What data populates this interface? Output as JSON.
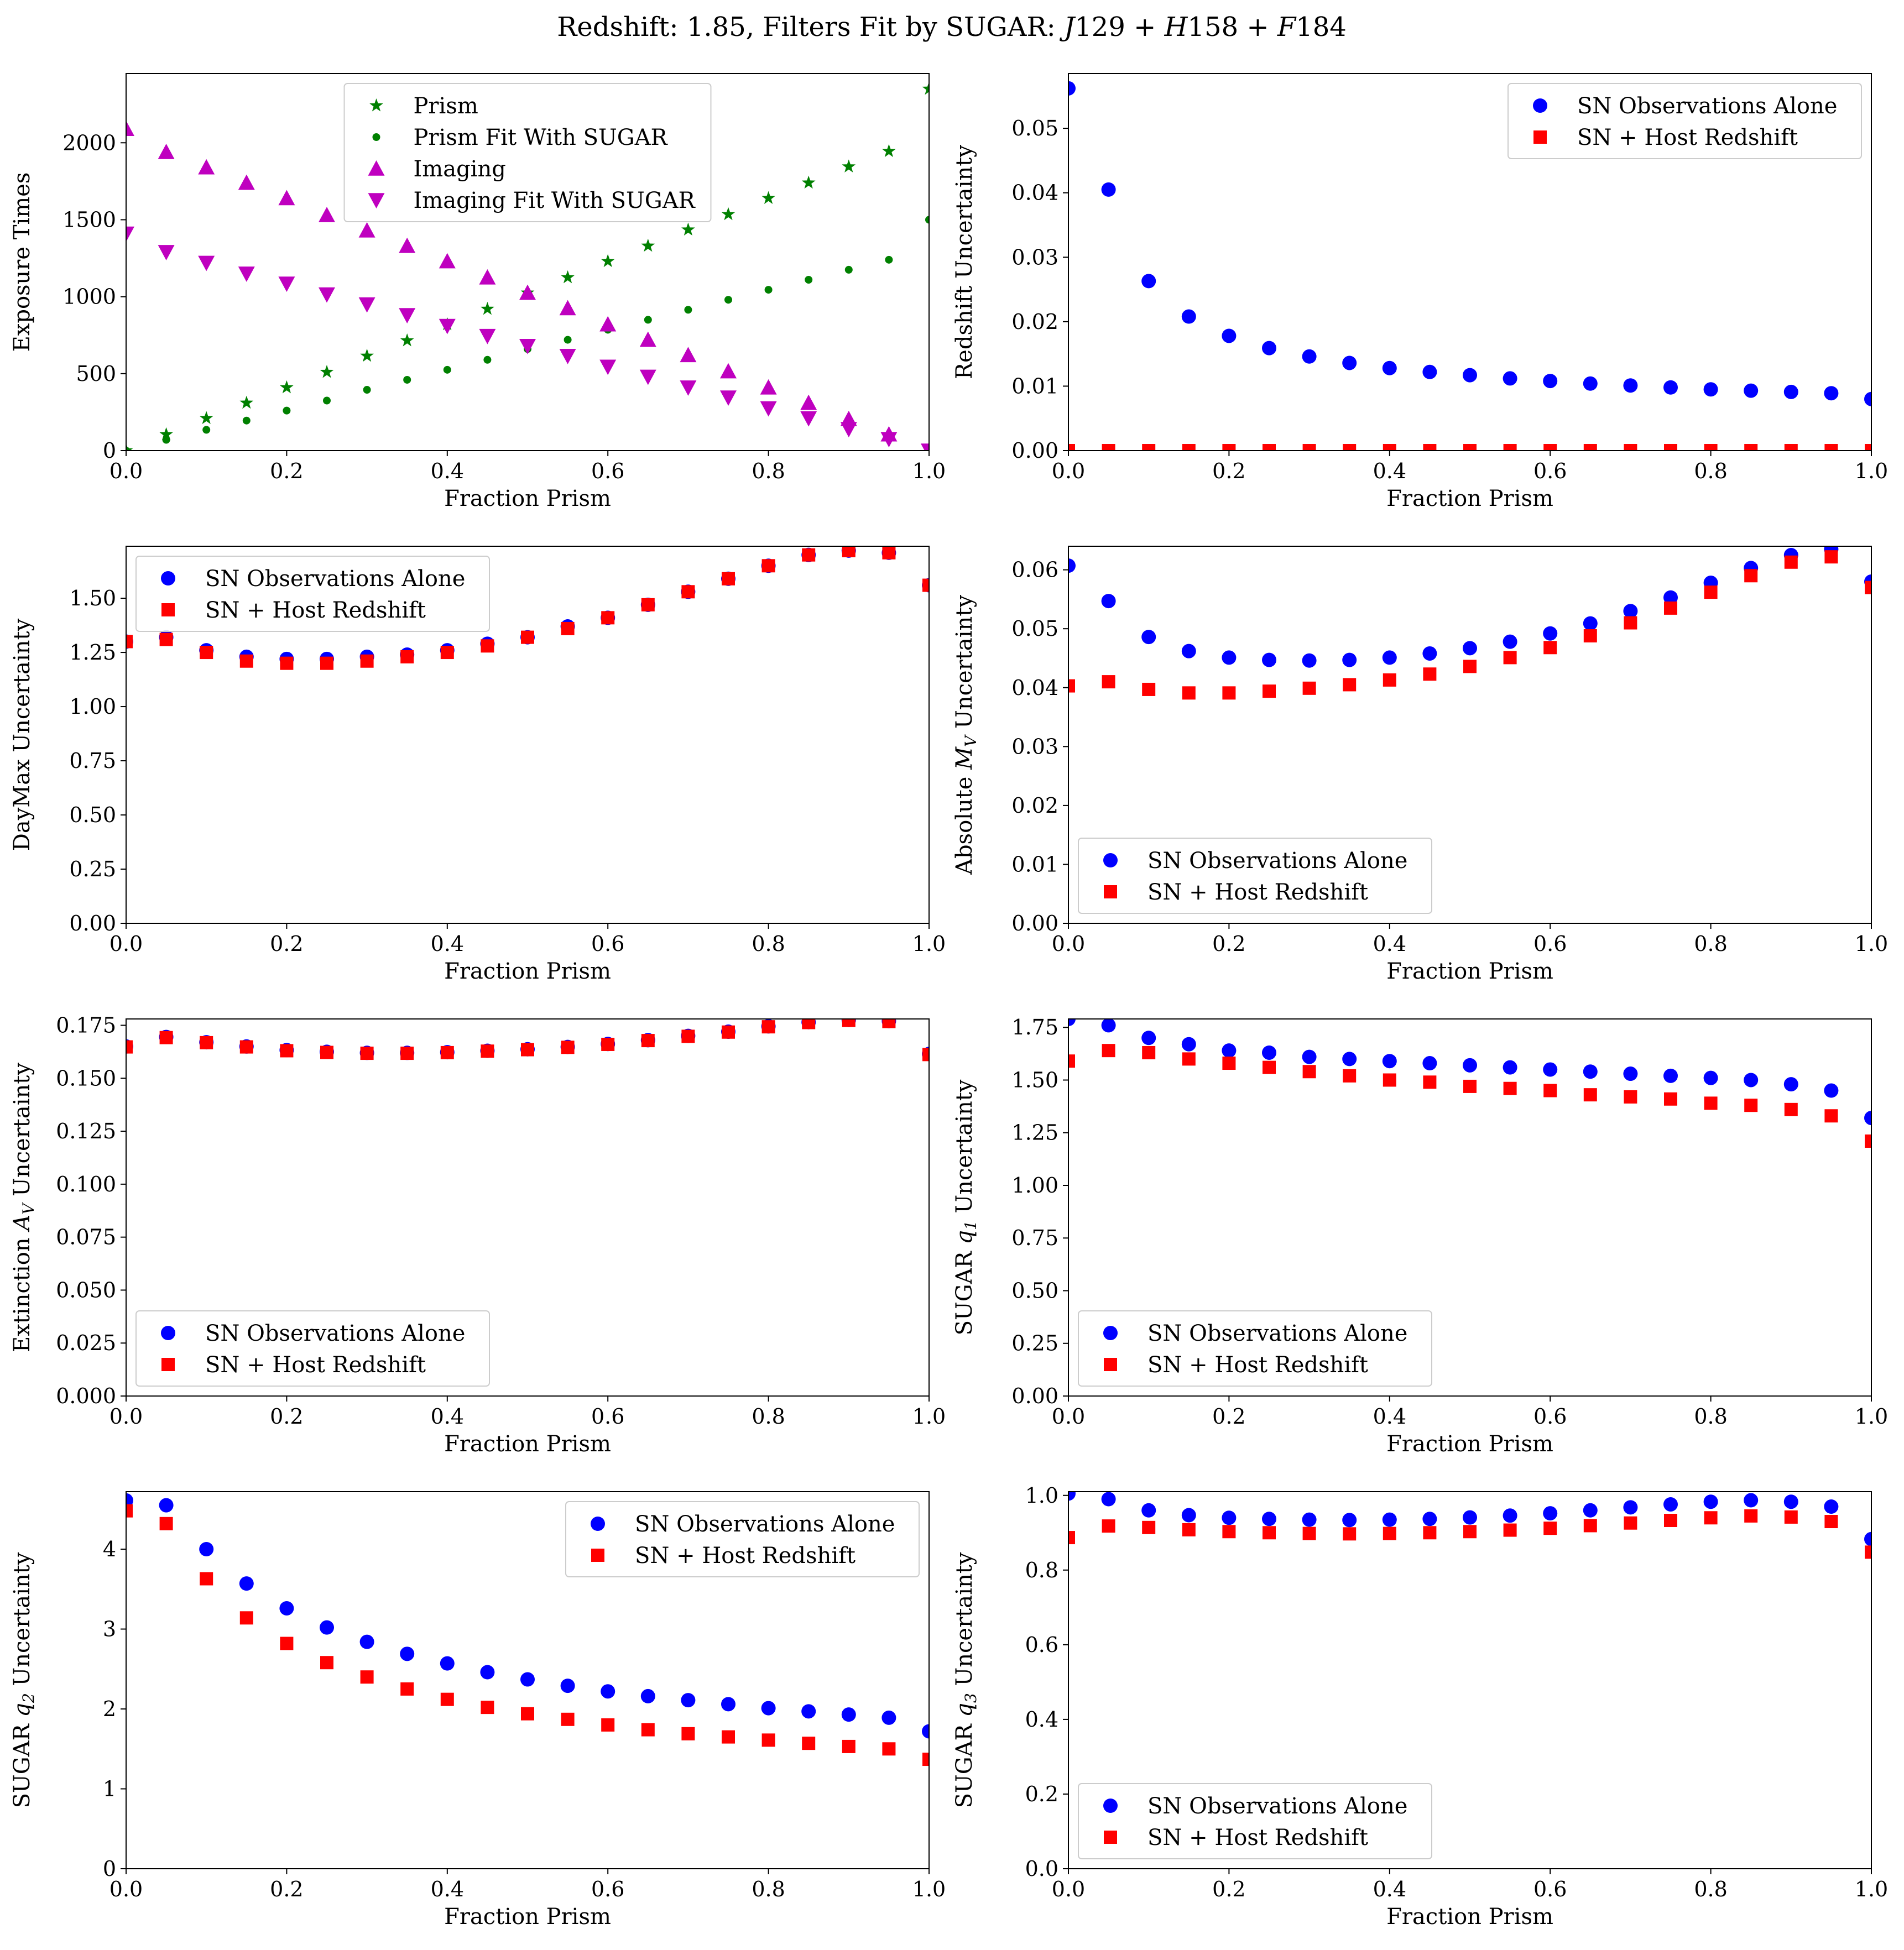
{
  "title": "Redshift: 1.85, Filters Fit by SUGAR: J129 + H158 + F184",
  "title_parts": [
    "Redshift: 1.85, Filters Fit by SUGAR: ",
    "J",
    "129 + ",
    "H",
    "158 + ",
    "F",
    "184"
  ],
  "colors": {
    "green": "#008000",
    "magenta": "#bf00bf",
    "blue": "#0000ff",
    "red": "#ff0000"
  },
  "chart_data": [
    {
      "type": "scatter",
      "xlabel": "Fraction Prism",
      "ylabel": "Exposure Times",
      "ylabel_parts": [
        "Exposure Times"
      ],
      "xlim": [
        0,
        1
      ],
      "ylim": [
        0,
        2450
      ],
      "xticks": [
        0,
        0.2,
        0.4,
        0.6,
        0.8,
        1.0
      ],
      "xtick_labels": [
        "0.0",
        "0.2",
        "0.4",
        "0.6",
        "0.8",
        "1.0"
      ],
      "yticks": [
        0,
        500,
        1000,
        1500,
        2000
      ],
      "ytick_labels": [
        "0",
        "500",
        "1000",
        "1500",
        "2000"
      ],
      "legend_position": "top-center",
      "x": [
        0,
        0.05,
        0.1,
        0.15,
        0.2,
        0.25,
        0.3,
        0.35,
        0.4,
        0.45,
        0.5,
        0.55,
        0.6,
        0.65,
        0.7,
        0.75,
        0.8,
        0.85,
        0.9,
        0.95,
        1.0
      ],
      "series": [
        {
          "name": "Prism",
          "marker": "star",
          "color": "#008000",
          "values": [
            0,
            105,
            210,
            310,
            410,
            510,
            615,
            715,
            820,
            920,
            1025,
            1125,
            1230,
            1330,
            1435,
            1535,
            1640,
            1740,
            1845,
            1945,
            2350
          ]
        },
        {
          "name": "Prism Fit With SUGAR",
          "marker": "point",
          "color": "#008000",
          "values": [
            0,
            70,
            135,
            195,
            260,
            325,
            395,
            460,
            525,
            590,
            660,
            720,
            785,
            850,
            915,
            980,
            1045,
            1110,
            1175,
            1240,
            1500
          ]
        },
        {
          "name": "Imaging",
          "marker": "triangle-up",
          "color": "#bf00bf",
          "values": [
            2090,
            1940,
            1840,
            1740,
            1640,
            1530,
            1430,
            1330,
            1230,
            1125,
            1025,
            925,
            820,
            720,
            620,
            515,
            410,
            310,
            205,
            105,
            0
          ]
        },
        {
          "name": "Imaging Fit With SUGAR",
          "marker": "triangle-down",
          "color": "#bf00bf",
          "values": [
            1410,
            1290,
            1220,
            1150,
            1085,
            1015,
            950,
            880,
            810,
            745,
            680,
            615,
            545,
            480,
            410,
            345,
            275,
            210,
            140,
            75,
            0
          ]
        }
      ]
    },
    {
      "type": "scatter",
      "xlabel": "Fraction Prism",
      "ylabel": "Redshift Uncertainty",
      "ylabel_parts": [
        "Redshift Uncertainty"
      ],
      "xlim": [
        0,
        1
      ],
      "ylim": [
        0,
        0.0585
      ],
      "xticks": [
        0,
        0.2,
        0.4,
        0.6,
        0.8,
        1.0
      ],
      "xtick_labels": [
        "0.0",
        "0.2",
        "0.4",
        "0.6",
        "0.8",
        "1.0"
      ],
      "yticks": [
        0,
        0.01,
        0.02,
        0.03,
        0.04,
        0.05
      ],
      "ytick_labels": [
        "0.00",
        "0.01",
        "0.02",
        "0.03",
        "0.04",
        "0.05"
      ],
      "legend_position": "top-right",
      "x": [
        0,
        0.05,
        0.1,
        0.15,
        0.2,
        0.25,
        0.3,
        0.35,
        0.4,
        0.45,
        0.5,
        0.55,
        0.6,
        0.65,
        0.7,
        0.75,
        0.8,
        0.85,
        0.9,
        0.95,
        1.0
      ],
      "series": [
        {
          "name": "SN Observations Alone",
          "marker": "circle",
          "color": "#0000ff",
          "values": [
            0.0562,
            0.0405,
            0.0263,
            0.0208,
            0.0178,
            0.0159,
            0.0146,
            0.0136,
            0.0128,
            0.0122,
            0.0117,
            0.0112,
            0.0108,
            0.0104,
            0.0101,
            0.0098,
            0.0095,
            0.0093,
            0.0091,
            0.0089,
            0.008
          ]
        },
        {
          "name": "SN + Host Redshift",
          "marker": "square",
          "color": "#ff0000",
          "values": [
            0,
            0,
            0,
            0,
            0,
            0,
            0,
            0,
            0,
            0,
            0,
            0,
            0,
            0,
            0,
            0,
            0,
            0,
            0,
            0,
            0
          ]
        }
      ]
    },
    {
      "type": "scatter",
      "xlabel": "Fraction Prism",
      "ylabel": "DayMax Uncertainty",
      "ylabel_parts": [
        "DayMax Uncertainty"
      ],
      "xlim": [
        0,
        1
      ],
      "ylim": [
        0,
        1.74
      ],
      "xticks": [
        0,
        0.2,
        0.4,
        0.6,
        0.8,
        1.0
      ],
      "xtick_labels": [
        "0.0",
        "0.2",
        "0.4",
        "0.6",
        "0.8",
        "1.0"
      ],
      "yticks": [
        0,
        0.25,
        0.5,
        0.75,
        1.0,
        1.25,
        1.5
      ],
      "ytick_labels": [
        "0.00",
        "0.25",
        "0.50",
        "0.75",
        "1.00",
        "1.25",
        "1.50"
      ],
      "legend_position": "top-left",
      "x": [
        0,
        0.05,
        0.1,
        0.15,
        0.2,
        0.25,
        0.3,
        0.35,
        0.4,
        0.45,
        0.5,
        0.55,
        0.6,
        0.65,
        0.7,
        0.75,
        0.8,
        0.85,
        0.9,
        0.95,
        1.0
      ],
      "series": [
        {
          "name": "SN Observations Alone",
          "marker": "circle",
          "color": "#0000ff",
          "values": [
            1.3,
            1.32,
            1.26,
            1.23,
            1.22,
            1.22,
            1.23,
            1.24,
            1.26,
            1.29,
            1.32,
            1.37,
            1.41,
            1.47,
            1.53,
            1.59,
            1.65,
            1.7,
            1.72,
            1.71,
            1.56
          ]
        },
        {
          "name": "SN + Host Redshift",
          "marker": "square",
          "color": "#ff0000",
          "values": [
            1.3,
            1.31,
            1.25,
            1.21,
            1.2,
            1.2,
            1.21,
            1.23,
            1.25,
            1.28,
            1.32,
            1.36,
            1.41,
            1.47,
            1.53,
            1.59,
            1.65,
            1.7,
            1.72,
            1.71,
            1.56
          ]
        }
      ]
    },
    {
      "type": "scatter",
      "xlabel": "Fraction Prism",
      "ylabel": "Absolute M_V Uncertainty",
      "ylabel_parts": [
        "Absolute ",
        "M",
        "V",
        " Uncertainty"
      ],
      "xlim": [
        0,
        1
      ],
      "ylim": [
        0,
        0.064
      ],
      "xticks": [
        0,
        0.2,
        0.4,
        0.6,
        0.8,
        1.0
      ],
      "xtick_labels": [
        "0.0",
        "0.2",
        "0.4",
        "0.6",
        "0.8",
        "1.0"
      ],
      "yticks": [
        0,
        0.01,
        0.02,
        0.03,
        0.04,
        0.05,
        0.06
      ],
      "ytick_labels": [
        "0.00",
        "0.01",
        "0.02",
        "0.03",
        "0.04",
        "0.05",
        "0.06"
      ],
      "legend_position": "bottom-left",
      "x": [
        0,
        0.05,
        0.1,
        0.15,
        0.2,
        0.25,
        0.3,
        0.35,
        0.4,
        0.45,
        0.5,
        0.55,
        0.6,
        0.65,
        0.7,
        0.75,
        0.8,
        0.85,
        0.9,
        0.95,
        1.0
      ],
      "series": [
        {
          "name": "SN Observations Alone",
          "marker": "circle",
          "color": "#0000ff",
          "values": [
            0.0607,
            0.0547,
            0.0486,
            0.0462,
            0.0451,
            0.0447,
            0.0446,
            0.0447,
            0.0451,
            0.0458,
            0.0467,
            0.0478,
            0.0492,
            0.0509,
            0.053,
            0.0553,
            0.0578,
            0.0603,
            0.0625,
            0.0635,
            0.058
          ]
        },
        {
          "name": "SN + Host Redshift",
          "marker": "square",
          "color": "#ff0000",
          "values": [
            0.0403,
            0.041,
            0.0397,
            0.0391,
            0.0391,
            0.0394,
            0.0399,
            0.0405,
            0.0413,
            0.0423,
            0.0436,
            0.0451,
            0.0468,
            0.0488,
            0.051,
            0.0535,
            0.0562,
            0.059,
            0.0613,
            0.0622,
            0.057
          ]
        }
      ]
    },
    {
      "type": "scatter",
      "xlabel": "Fraction Prism",
      "ylabel": "Extinction A_V Uncertainty",
      "ylabel_parts": [
        "Extinction ",
        "A",
        "V",
        " Uncertainty"
      ],
      "xlim": [
        0,
        1
      ],
      "ylim": [
        0,
        0.178
      ],
      "xticks": [
        0,
        0.2,
        0.4,
        0.6,
        0.8,
        1.0
      ],
      "xtick_labels": [
        "0.0",
        "0.2",
        "0.4",
        "0.6",
        "0.8",
        "1.0"
      ],
      "yticks": [
        0,
        0.025,
        0.05,
        0.075,
        0.1,
        0.125,
        0.15,
        0.175
      ],
      "ytick_labels": [
        "0.000",
        "0.025",
        "0.050",
        "0.075",
        "0.100",
        "0.125",
        "0.150",
        "0.175"
      ],
      "legend_position": "bottom-left",
      "x": [
        0,
        0.05,
        0.1,
        0.15,
        0.2,
        0.25,
        0.3,
        0.35,
        0.4,
        0.45,
        0.5,
        0.55,
        0.6,
        0.65,
        0.7,
        0.75,
        0.8,
        0.85,
        0.9,
        0.95,
        1.0
      ],
      "series": [
        {
          "name": "SN Observations Alone",
          "marker": "circle",
          "color": "#0000ff",
          "values": [
            0.165,
            0.1695,
            0.167,
            0.165,
            0.1633,
            0.1625,
            0.162,
            0.162,
            0.1623,
            0.163,
            0.1637,
            0.1648,
            0.1662,
            0.168,
            0.17,
            0.172,
            0.1745,
            0.1765,
            0.1775,
            0.177,
            0.1615
          ]
        },
        {
          "name": "SN + Host Redshift",
          "marker": "square",
          "color": "#ff0000",
          "values": [
            0.1648,
            0.1692,
            0.1668,
            0.1648,
            0.163,
            0.1622,
            0.1618,
            0.1618,
            0.1621,
            0.1628,
            0.1635,
            0.1646,
            0.166,
            0.1678,
            0.1698,
            0.1718,
            0.1743,
            0.1763,
            0.1773,
            0.1768,
            0.1612
          ]
        }
      ]
    },
    {
      "type": "scatter",
      "xlabel": "Fraction Prism",
      "ylabel": "SUGAR q_1 Uncertainty",
      "ylabel_parts": [
        "SUGAR ",
        "q",
        "1",
        " Uncertainty"
      ],
      "xlim": [
        0,
        1
      ],
      "ylim": [
        0,
        1.79
      ],
      "xticks": [
        0,
        0.2,
        0.4,
        0.6,
        0.8,
        1.0
      ],
      "xtick_labels": [
        "0.0",
        "0.2",
        "0.4",
        "0.6",
        "0.8",
        "1.0"
      ],
      "yticks": [
        0,
        0.25,
        0.5,
        0.75,
        1.0,
        1.25,
        1.5,
        1.75
      ],
      "ytick_labels": [
        "0.00",
        "0.25",
        "0.50",
        "0.75",
        "1.00",
        "1.25",
        "1.50",
        "1.75"
      ],
      "legend_position": "bottom-left",
      "x": [
        0,
        0.05,
        0.1,
        0.15,
        0.2,
        0.25,
        0.3,
        0.35,
        0.4,
        0.45,
        0.5,
        0.55,
        0.6,
        0.65,
        0.7,
        0.75,
        0.8,
        0.85,
        0.9,
        0.95,
        1.0
      ],
      "series": [
        {
          "name": "SN Observations Alone",
          "marker": "circle",
          "color": "#0000ff",
          "values": [
            1.79,
            1.76,
            1.7,
            1.67,
            1.64,
            1.63,
            1.61,
            1.6,
            1.59,
            1.58,
            1.57,
            1.56,
            1.55,
            1.54,
            1.53,
            1.52,
            1.51,
            1.5,
            1.48,
            1.45,
            1.32
          ]
        },
        {
          "name": "SN + Host Redshift",
          "marker": "square",
          "color": "#ff0000",
          "values": [
            1.59,
            1.64,
            1.63,
            1.6,
            1.58,
            1.56,
            1.54,
            1.52,
            1.5,
            1.49,
            1.47,
            1.46,
            1.45,
            1.43,
            1.42,
            1.41,
            1.39,
            1.38,
            1.36,
            1.33,
            1.21
          ]
        }
      ]
    },
    {
      "type": "scatter",
      "xlabel": "Fraction Prism",
      "ylabel": "SUGAR q_2 Uncertainty",
      "ylabel_parts": [
        "SUGAR ",
        "q",
        "2",
        " Uncertainty"
      ],
      "xlim": [
        0,
        1
      ],
      "ylim": [
        0,
        4.72
      ],
      "xticks": [
        0,
        0.2,
        0.4,
        0.6,
        0.8,
        1.0
      ],
      "xtick_labels": [
        "0.0",
        "0.2",
        "0.4",
        "0.6",
        "0.8",
        "1.0"
      ],
      "yticks": [
        0,
        1,
        2,
        3,
        4
      ],
      "ytick_labels": [
        "0",
        "1",
        "2",
        "3",
        "4"
      ],
      "legend_position": "top-right",
      "x": [
        0,
        0.05,
        0.1,
        0.15,
        0.2,
        0.25,
        0.3,
        0.35,
        0.4,
        0.45,
        0.5,
        0.55,
        0.6,
        0.65,
        0.7,
        0.75,
        0.8,
        0.85,
        0.9,
        0.95,
        1.0
      ],
      "series": [
        {
          "name": "SN Observations Alone",
          "marker": "circle",
          "color": "#0000ff",
          "values": [
            4.61,
            4.55,
            4.0,
            3.57,
            3.26,
            3.02,
            2.84,
            2.69,
            2.57,
            2.46,
            2.37,
            2.29,
            2.22,
            2.16,
            2.11,
            2.06,
            2.01,
            1.97,
            1.93,
            1.89,
            1.72
          ]
        },
        {
          "name": "SN + Host Redshift",
          "marker": "square",
          "color": "#ff0000",
          "values": [
            4.48,
            4.32,
            3.63,
            3.14,
            2.82,
            2.58,
            2.4,
            2.25,
            2.12,
            2.02,
            1.94,
            1.87,
            1.8,
            1.74,
            1.69,
            1.65,
            1.61,
            1.57,
            1.53,
            1.5,
            1.37
          ]
        }
      ]
    },
    {
      "type": "scatter",
      "xlabel": "Fraction Prism",
      "ylabel": "SUGAR q_3 Uncertainty",
      "ylabel_parts": [
        "SUGAR ",
        "q",
        "3",
        " Uncertainty"
      ],
      "xlim": [
        0,
        1
      ],
      "ylim": [
        0,
        1.01
      ],
      "xticks": [
        0,
        0.2,
        0.4,
        0.6,
        0.8,
        1.0
      ],
      "xtick_labels": [
        "0.0",
        "0.2",
        "0.4",
        "0.6",
        "0.8",
        "1.0"
      ],
      "yticks": [
        0,
        0.2,
        0.4,
        0.6,
        0.8,
        1.0
      ],
      "ytick_labels": [
        "0.0",
        "0.2",
        "0.4",
        "0.6",
        "0.8",
        "1.0"
      ],
      "legend_position": "bottom-left",
      "x": [
        0,
        0.05,
        0.1,
        0.15,
        0.2,
        0.25,
        0.3,
        0.35,
        0.4,
        0.45,
        0.5,
        0.55,
        0.6,
        0.65,
        0.7,
        0.75,
        0.8,
        0.85,
        0.9,
        0.95,
        1.0
      ],
      "series": [
        {
          "name": "SN Observations Alone",
          "marker": "circle",
          "color": "#0000ff",
          "values": [
            1.005,
            0.99,
            0.96,
            0.947,
            0.94,
            0.937,
            0.935,
            0.934,
            0.935,
            0.937,
            0.941,
            0.946,
            0.952,
            0.96,
            0.968,
            0.976,
            0.983,
            0.987,
            0.983,
            0.97,
            0.883
          ]
        },
        {
          "name": "SN + Host Redshift",
          "marker": "square",
          "color": "#ff0000",
          "values": [
            0.887,
            0.918,
            0.914,
            0.908,
            0.903,
            0.9,
            0.898,
            0.897,
            0.898,
            0.9,
            0.903,
            0.907,
            0.912,
            0.919,
            0.926,
            0.933,
            0.94,
            0.945,
            0.942,
            0.93,
            0.848
          ]
        }
      ]
    }
  ]
}
